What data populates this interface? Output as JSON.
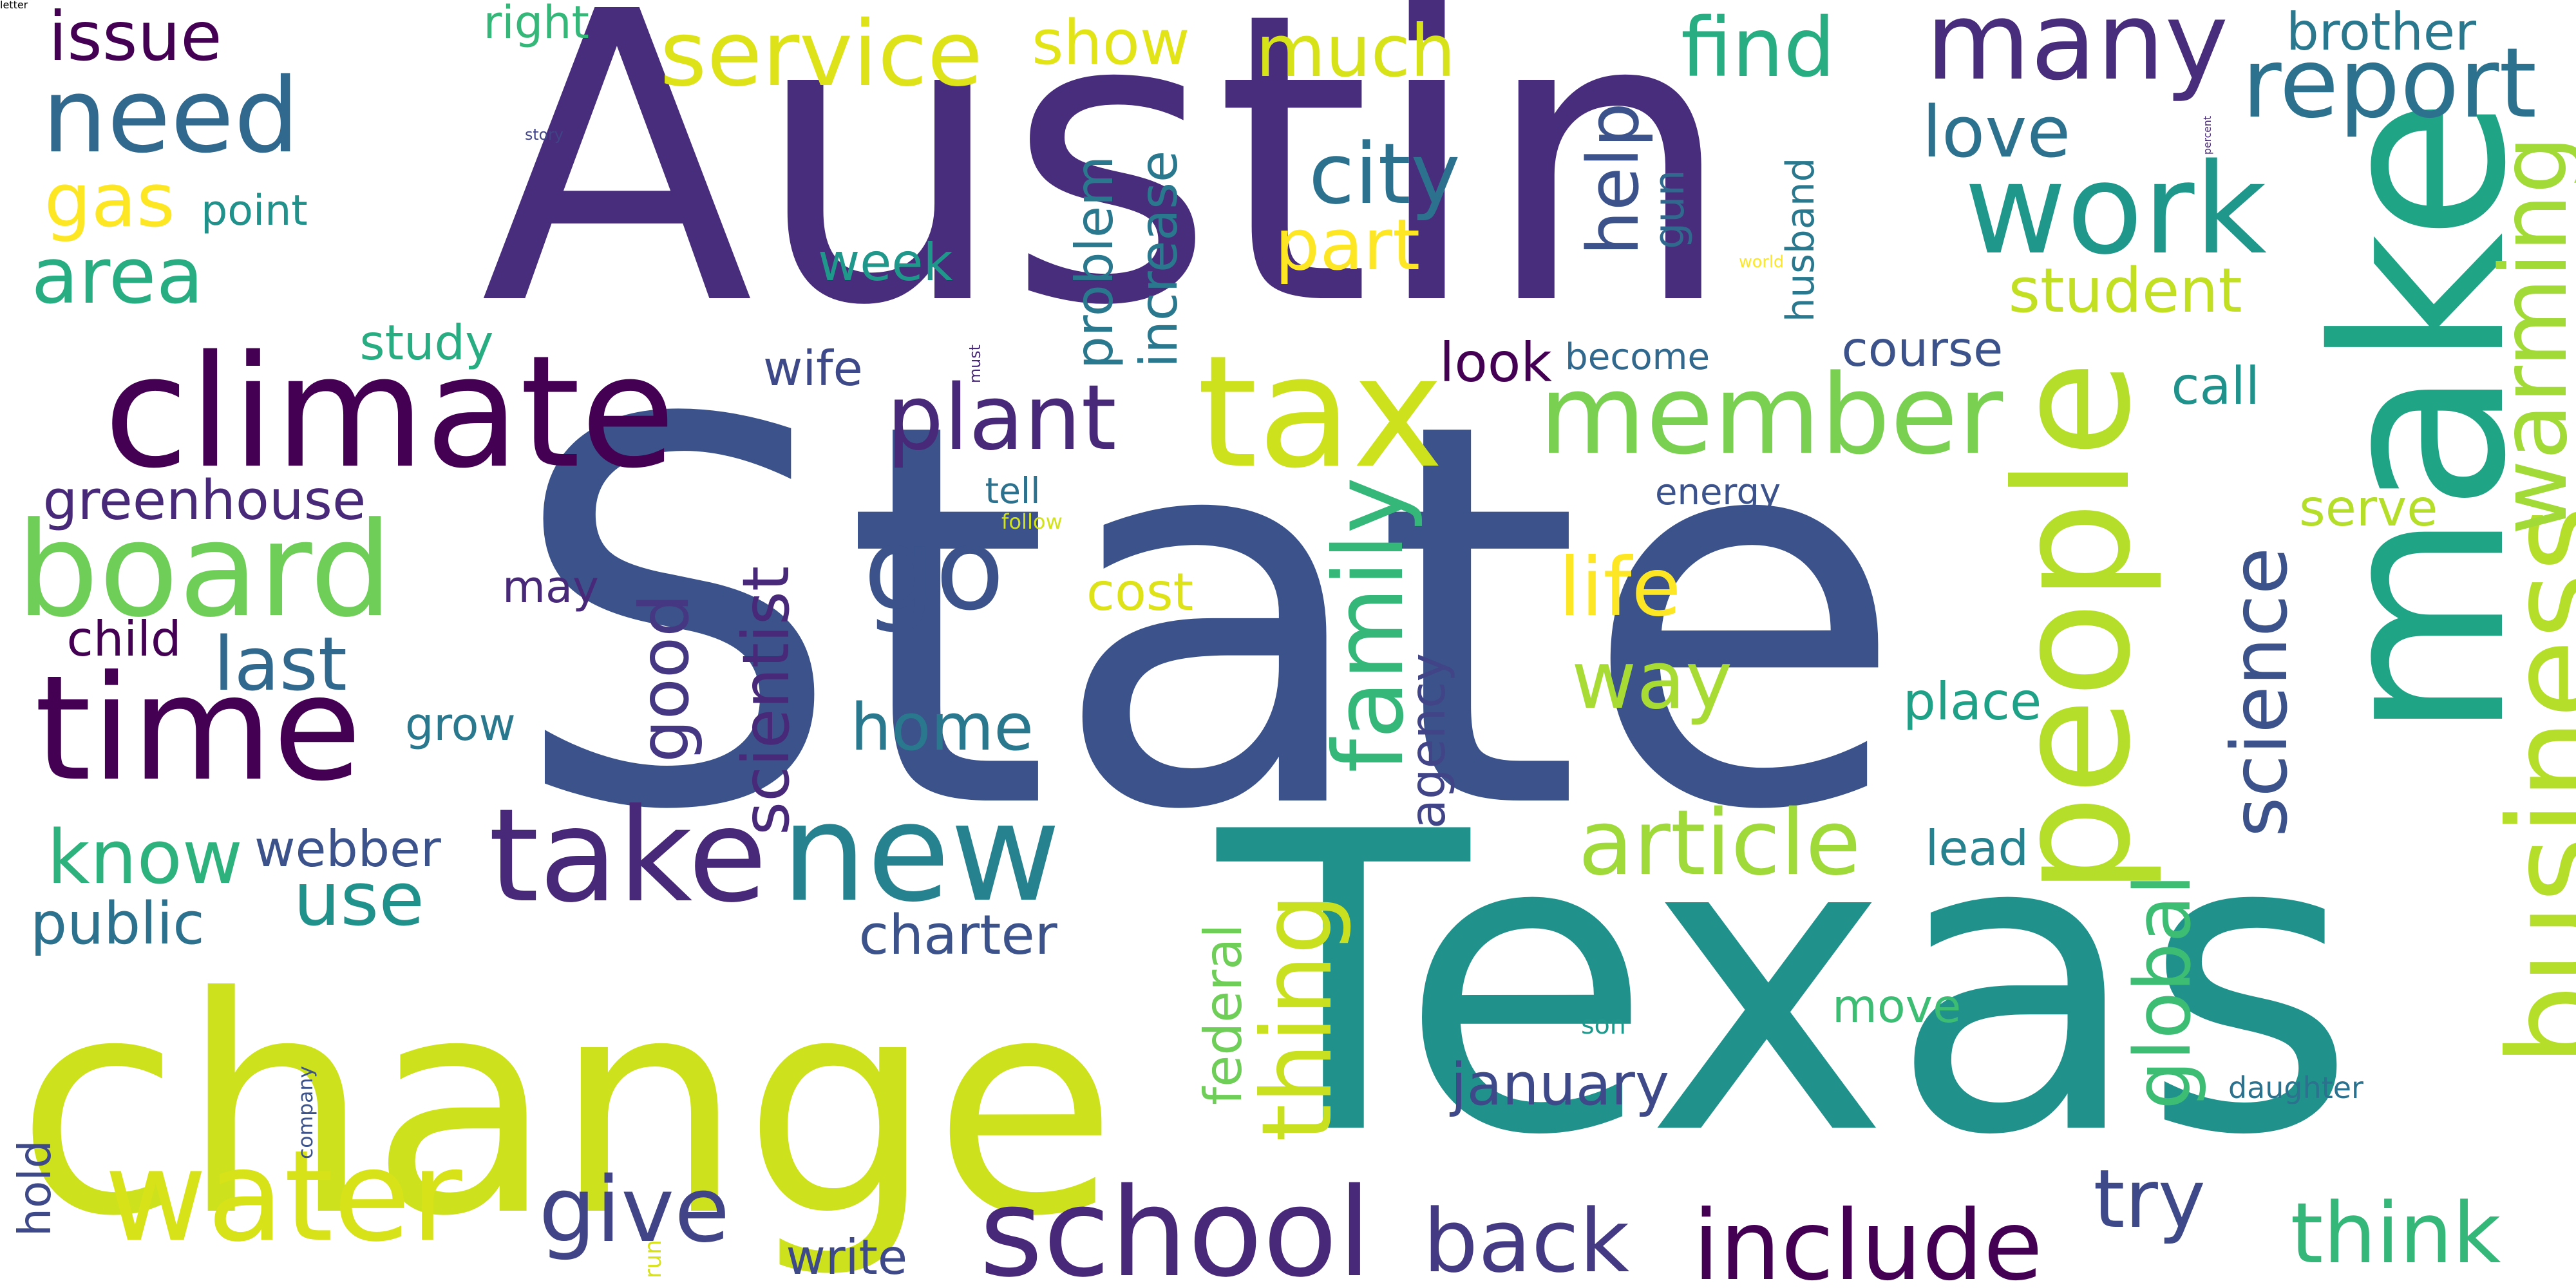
{
  "words": [
    {
      "text": "State",
      "color": "#3b528b",
      "orientation": "horizontal"
    },
    {
      "text": "Texas",
      "color": "#21918c",
      "orientation": "horizontal"
    },
    {
      "text": "Austin",
      "color": "#472d7b",
      "orientation": "horizontal"
    },
    {
      "text": "make",
      "color": "#20a486",
      "orientation": "vertical"
    },
    {
      "text": "change",
      "color": "#cde11d",
      "orientation": "horizontal"
    },
    {
      "text": "climate",
      "color": "#440154",
      "orientation": "horizontal"
    },
    {
      "text": "time",
      "color": "#440154",
      "orientation": "horizontal"
    },
    {
      "text": "people",
      "color": "#b5de2b",
      "orientation": "vertical"
    },
    {
      "text": "tax",
      "color": "#cde11d",
      "orientation": "horizontal"
    },
    {
      "text": "board",
      "color": "#6ece58",
      "orientation": "horizontal"
    },
    {
      "text": "many",
      "color": "#472d7b",
      "orientation": "horizontal"
    },
    {
      "text": "work",
      "color": "#1f988b",
      "orientation": "horizontal"
    },
    {
      "text": "member",
      "color": "#7ad151",
      "orientation": "horizontal"
    },
    {
      "text": "take",
      "color": "#482878",
      "orientation": "horizontal"
    },
    {
      "text": "new",
      "color": "#26828e",
      "orientation": "horizontal"
    },
    {
      "text": "go",
      "color": "#3b528b",
      "orientation": "horizontal"
    },
    {
      "text": "water",
      "color": "#d8e219",
      "orientation": "horizontal"
    },
    {
      "text": "school",
      "color": "#482878",
      "orientation": "horizontal"
    },
    {
      "text": "need",
      "color": "#31688e",
      "orientation": "horizontal"
    },
    {
      "text": "business",
      "color": "#b5de2b",
      "orientation": "vertical"
    },
    {
      "text": "report",
      "color": "#2c728e",
      "orientation": "horizontal"
    },
    {
      "text": "service",
      "color": "#dde318",
      "orientation": "horizontal"
    },
    {
      "text": "plant",
      "color": "#482878",
      "orientation": "horizontal"
    },
    {
      "text": "article",
      "color": "#9fda3a",
      "orientation": "horizontal"
    },
    {
      "text": "include",
      "color": "#440154",
      "orientation": "horizontal"
    },
    {
      "text": "think",
      "color": "#35b779",
      "orientation": "horizontal"
    },
    {
      "text": "back",
      "color": "#443a83",
      "orientation": "horizontal"
    },
    {
      "text": "city",
      "color": "#2c728e",
      "orientation": "horizontal"
    },
    {
      "text": "family",
      "color": "#35b779",
      "orientation": "vertical"
    },
    {
      "text": "science",
      "color": "#3b528b",
      "orientation": "vertical"
    },
    {
      "text": "give",
      "color": "#414487",
      "orientation": "horizontal"
    },
    {
      "text": "much",
      "color": "#d8e219",
      "orientation": "horizontal"
    },
    {
      "text": "area",
      "color": "#27ad81",
      "orientation": "horizontal"
    },
    {
      "text": "warming",
      "color": "#a2da37",
      "orientation": "vertical"
    },
    {
      "text": "last",
      "color": "#31688e",
      "orientation": "horizontal"
    },
    {
      "text": "use",
      "color": "#21918c",
      "orientation": "horizontal"
    },
    {
      "text": "know",
      "color": "#2db27d",
      "orientation": "horizontal"
    },
    {
      "text": "way",
      "color": "#a8db34",
      "orientation": "horizontal"
    },
    {
      "text": "home",
      "color": "#2a788e",
      "orientation": "horizontal"
    },
    {
      "text": "good",
      "color": "#453781",
      "orientation": "vertical"
    },
    {
      "text": "life",
      "color": "#fde725",
      "orientation": "horizontal"
    },
    {
      "text": "love",
      "color": "#2c728e",
      "orientation": "horizontal"
    },
    {
      "text": "find",
      "color": "#27ad81",
      "orientation": "horizontal"
    },
    {
      "text": "issue",
      "color": "#440154",
      "orientation": "horizontal"
    },
    {
      "text": "gas",
      "color": "#fde725",
      "orientation": "horizontal"
    },
    {
      "text": "student",
      "color": "#c2df23",
      "orientation": "horizontal"
    },
    {
      "text": "thing",
      "color": "#c8e020",
      "orientation": "vertical"
    },
    {
      "text": "try",
      "color": "#3e4989",
      "orientation": "horizontal"
    },
    {
      "text": "help",
      "color": "#3b528b",
      "orientation": "vertical"
    },
    {
      "text": "global",
      "color": "#3dbc74",
      "orientation": "vertical"
    },
    {
      "text": "show",
      "color": "#e2e418",
      "orientation": "horizontal"
    },
    {
      "text": "part",
      "color": "#fde725",
      "orientation": "horizontal"
    },
    {
      "text": "scientist",
      "color": "#482878",
      "orientation": "vertical"
    },
    {
      "text": "greenhouse",
      "color": "#482878",
      "orientation": "horizontal"
    },
    {
      "text": "charter",
      "color": "#3b528b",
      "orientation": "horizontal"
    },
    {
      "text": "problem",
      "color": "#2a788e",
      "orientation": "vertical"
    },
    {
      "text": "increase",
      "color": "#2a788e",
      "orientation": "vertical"
    },
    {
      "text": "january",
      "color": "#3e4989",
      "orientation": "horizontal"
    },
    {
      "text": "public",
      "color": "#2c728e",
      "orientation": "horizontal"
    },
    {
      "text": "week",
      "color": "#1f988b",
      "orientation": "horizontal"
    },
    {
      "text": "place",
      "color": "#1fa187",
      "orientation": "horizontal"
    },
    {
      "text": "webber",
      "color": "#3b528b",
      "orientation": "horizontal"
    },
    {
      "text": "call",
      "color": "#21918c",
      "orientation": "horizontal"
    },
    {
      "text": "look",
      "color": "#440154",
      "orientation": "horizontal"
    },
    {
      "text": "course",
      "color": "#3b528b",
      "orientation": "horizontal"
    },
    {
      "text": "agency",
      "color": "#414487",
      "orientation": "vertical"
    },
    {
      "text": "cost",
      "color": "#dde318",
      "orientation": "horizontal"
    },
    {
      "text": "serve",
      "color": "#b5de2b",
      "orientation": "horizontal"
    },
    {
      "text": "lead",
      "color": "#26828e",
      "orientation": "horizontal"
    },
    {
      "text": "move",
      "color": "#3dbc74",
      "orientation": "horizontal"
    },
    {
      "text": "federal",
      "color": "#6ece58",
      "orientation": "vertical"
    },
    {
      "text": "brother",
      "color": "#2a788e",
      "orientation": "horizontal"
    },
    {
      "text": "wife",
      "color": "#3e4989",
      "orientation": "horizontal"
    },
    {
      "text": "may",
      "color": "#482878",
      "orientation": "horizontal"
    },
    {
      "text": "study",
      "color": "#27ad81",
      "orientation": "horizontal"
    },
    {
      "text": "child",
      "color": "#440154",
      "orientation": "horizontal"
    },
    {
      "text": "grow",
      "color": "#2a788e",
      "orientation": "horizontal"
    },
    {
      "text": "world",
      "color": "#fde725",
      "orientation": "horizontal"
    },
    {
      "text": "husband",
      "color": "#2a788e",
      "orientation": "vertical"
    },
    {
      "text": "percent",
      "color": "#482878",
      "orientation": "vertical"
    },
    {
      "text": "daughter",
      "color": "#2c728e",
      "orientation": "horizontal"
    },
    {
      "text": "write",
      "color": "#3e4989",
      "orientation": "horizontal"
    },
    {
      "text": "become",
      "color": "#31688e",
      "orientation": "horizontal"
    },
    {
      "text": "energy",
      "color": "#3b528b",
      "orientation": "horizontal"
    },
    {
      "text": "point",
      "color": "#21918c",
      "orientation": "horizontal"
    },
    {
      "text": "right",
      "color": "#35b779",
      "orientation": "horizontal"
    },
    {
      "text": "story",
      "color": "#414487",
      "orientation": "horizontal"
    },
    {
      "text": "gun",
      "color": "#31688e",
      "orientation": "vertical"
    },
    {
      "text": "must",
      "color": "#482878",
      "orientation": "vertical"
    },
    {
      "text": "tell",
      "color": "#2c728e",
      "orientation": "horizontal"
    },
    {
      "text": "follow",
      "color": "#d2e21b",
      "orientation": "horizontal"
    },
    {
      "text": "son",
      "color": "#1f988b",
      "orientation": "horizontal"
    },
    {
      "text": "company",
      "color": "#3b528b",
      "orientation": "vertical"
    },
    {
      "text": "hold",
      "color": "#3e4989",
      "orientation": "vertical"
    },
    {
      "text": "run",
      "color": "#d8e219",
      "orientation": "vertical"
    },
    {
      "text": "letter",
      "color": "#26828e",
      "orientation": "horizontal"
    }
  ]
}
